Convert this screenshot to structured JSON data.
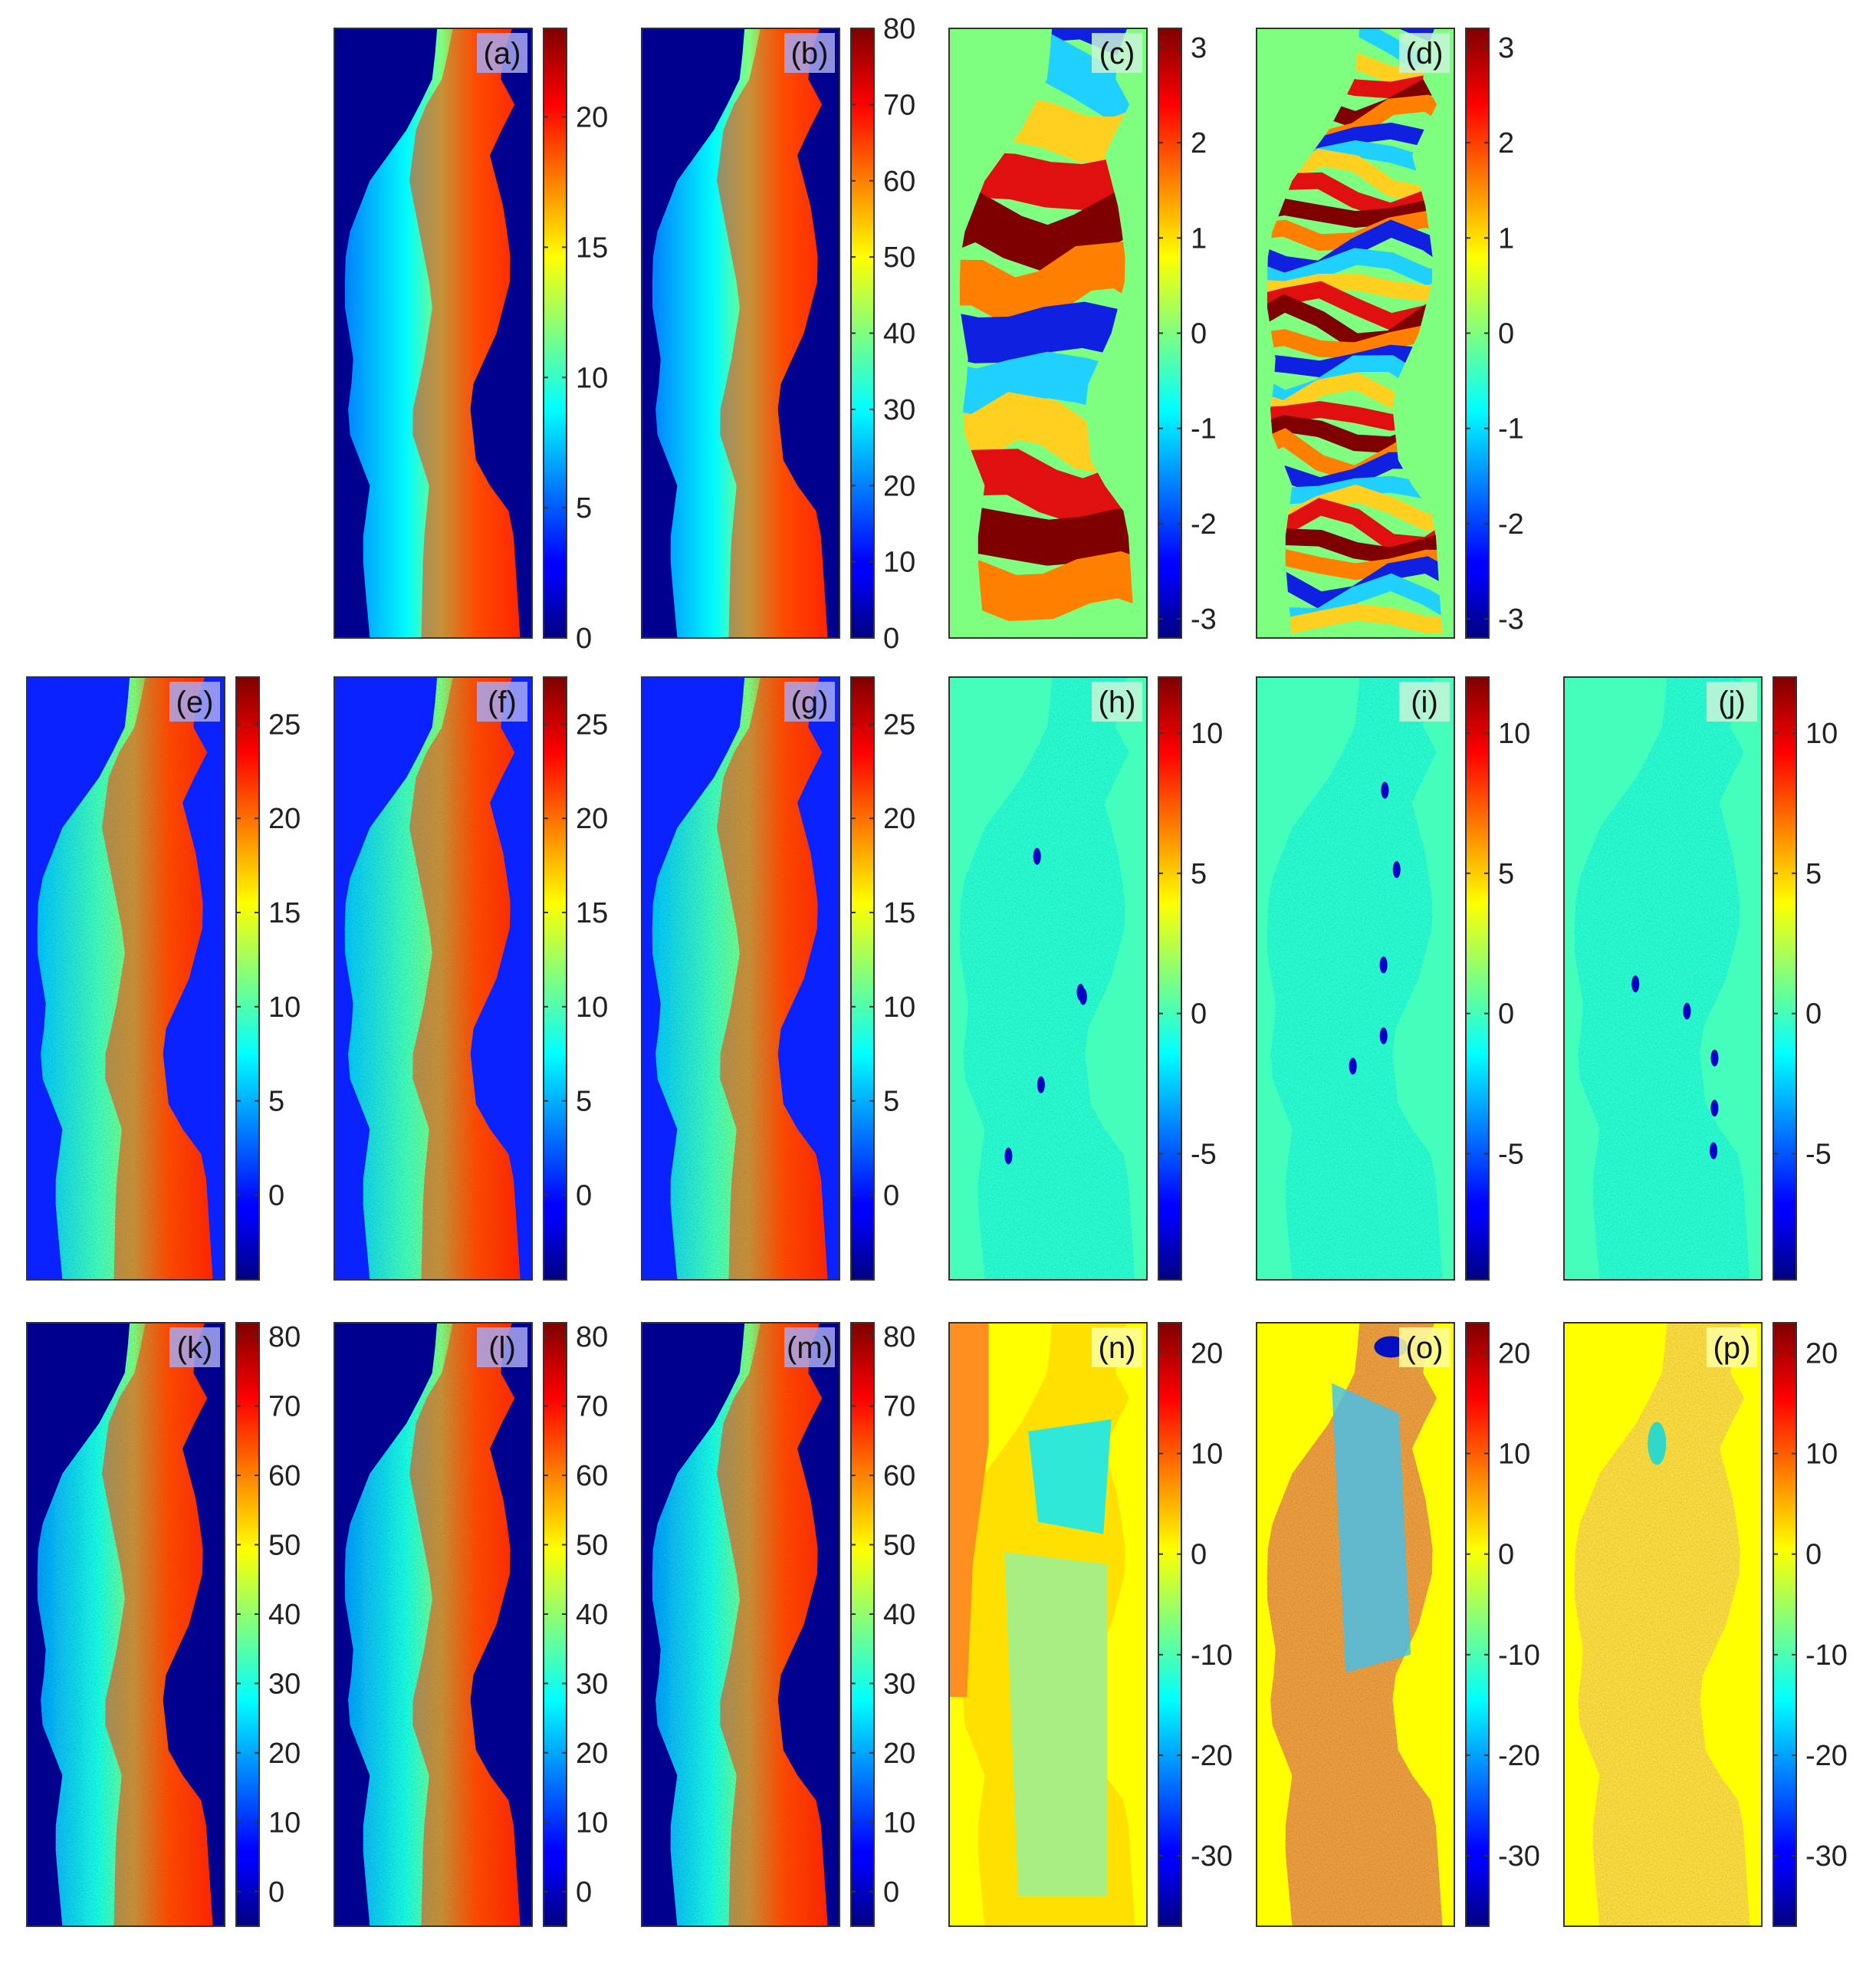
{
  "figure": {
    "panels": [
      {
        "label": "(a)",
        "style": "ramp",
        "variant": "a",
        "colorbar": {
          "min": 0,
          "max": 23.4,
          "ticks": [
            "0",
            "5",
            "10",
            "15",
            "20"
          ],
          "tick_values": [
            0,
            5,
            10,
            15,
            20
          ]
        }
      },
      {
        "label": "(b)",
        "style": "ramp",
        "variant": "a",
        "colorbar": {
          "min": 0,
          "max": 80,
          "ticks": [
            "0",
            "10",
            "20",
            "30",
            "40",
            "50",
            "60",
            "70",
            "80"
          ],
          "tick_values": [
            0,
            10,
            20,
            30,
            40,
            50,
            60,
            70,
            80
          ]
        }
      },
      {
        "label": "(c)",
        "style": "fringe",
        "fringes": 4,
        "colorbar": {
          "min": -3.2,
          "max": 3.2,
          "ticks": [
            "-3",
            "-2",
            "-1",
            "0",
            "1",
            "2",
            "3"
          ],
          "tick_values": [
            -3,
            -2,
            -1,
            0,
            1,
            2,
            3
          ]
        }
      },
      {
        "label": "(d)",
        "style": "fringe",
        "fringes": 11,
        "colorbar": {
          "min": -3.2,
          "max": 3.2,
          "ticks": [
            "-3",
            "-2",
            "-1",
            "0",
            "1",
            "2",
            "3"
          ],
          "tick_values": [
            -3,
            -2,
            -1,
            0,
            1,
            2,
            3
          ]
        }
      },
      {
        "label": "(e)",
        "style": "ramp",
        "variant": "e",
        "colorbar": {
          "min": -4.5,
          "max": 27.5,
          "ticks": [
            "0",
            "5",
            "10",
            "15",
            "20",
            "25"
          ],
          "tick_values": [
            0,
            5,
            10,
            15,
            20,
            25
          ]
        }
      },
      {
        "label": "(f)",
        "style": "ramp",
        "variant": "e",
        "colorbar": {
          "min": -4.5,
          "max": 27.5,
          "ticks": [
            "0",
            "5",
            "10",
            "15",
            "20",
            "25"
          ],
          "tick_values": [
            0,
            5,
            10,
            15,
            20,
            25
          ]
        }
      },
      {
        "label": "(g)",
        "style": "ramp",
        "variant": "e",
        "colorbar": {
          "min": -4.5,
          "max": 27.5,
          "ticks": [
            "0",
            "5",
            "10",
            "15",
            "20",
            "25"
          ],
          "tick_values": [
            0,
            5,
            10,
            15,
            20,
            25
          ]
        }
      },
      {
        "label": "(h)",
        "style": "flat",
        "colorbar": {
          "min": -9.5,
          "max": 12,
          "ticks": [
            "-5",
            "0",
            "5",
            "10"
          ],
          "tick_values": [
            -5,
            0,
            5,
            10
          ]
        }
      },
      {
        "label": "(i)",
        "style": "flat",
        "colorbar": {
          "min": -9.5,
          "max": 12,
          "ticks": [
            "-5",
            "0",
            "5",
            "10"
          ],
          "tick_values": [
            -5,
            0,
            5,
            10
          ]
        }
      },
      {
        "label": "(j)",
        "style": "flat",
        "colorbar": {
          "min": -9.5,
          "max": 12,
          "ticks": [
            "-5",
            "0",
            "5",
            "10"
          ],
          "tick_values": [
            -5,
            0,
            5,
            10
          ]
        }
      },
      {
        "label": "(k)",
        "style": "ramp",
        "variant": "k",
        "colorbar": {
          "min": -5,
          "max": 82,
          "ticks": [
            "0",
            "10",
            "20",
            "30",
            "40",
            "50",
            "60",
            "70",
            "80"
          ],
          "tick_values": [
            0,
            10,
            20,
            30,
            40,
            50,
            60,
            70,
            80
          ]
        }
      },
      {
        "label": "(l)",
        "style": "ramp",
        "variant": "k",
        "colorbar": {
          "min": -5,
          "max": 82,
          "ticks": [
            "0",
            "10",
            "20",
            "30",
            "40",
            "50",
            "60",
            "70",
            "80"
          ],
          "tick_values": [
            0,
            10,
            20,
            30,
            40,
            50,
            60,
            70,
            80
          ]
        }
      },
      {
        "label": "(m)",
        "style": "ramp",
        "variant": "k",
        "colorbar": {
          "min": -5,
          "max": 82,
          "ticks": [
            "0",
            "10",
            "20",
            "30",
            "40",
            "50",
            "60",
            "70",
            "80"
          ],
          "tick_values": [
            0,
            10,
            20,
            30,
            40,
            50,
            60,
            70,
            80
          ]
        }
      },
      {
        "label": "(n)",
        "style": "regions",
        "colorbar": {
          "min": -37,
          "max": 23,
          "ticks": [
            "-30",
            "-20",
            "-10",
            "0",
            "10",
            "20"
          ],
          "tick_values": [
            -30,
            -20,
            -10,
            0,
            10,
            20
          ]
        }
      },
      {
        "label": "(o)",
        "style": "noisy-error",
        "colorbar": {
          "min": -37,
          "max": 23,
          "ticks": [
            "-30",
            "-20",
            "-10",
            "0",
            "10",
            "20"
          ],
          "tick_values": [
            -30,
            -20,
            -10,
            0,
            10,
            20
          ]
        }
      },
      {
        "label": "(p)",
        "style": "small-error",
        "colorbar": {
          "min": -37,
          "max": 23,
          "ticks": [
            "-30",
            "-20",
            "-10",
            "0",
            "10",
            "20"
          ],
          "tick_values": [
            -30,
            -20,
            -10,
            0,
            10,
            20
          ]
        }
      }
    ]
  }
}
